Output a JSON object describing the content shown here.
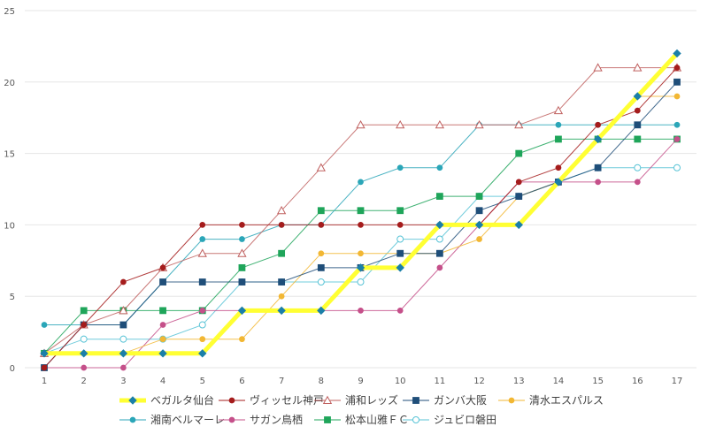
{
  "chart_data": {
    "type": "line",
    "x": [
      1,
      2,
      3,
      4,
      5,
      6,
      7,
      8,
      9,
      10,
      11,
      12,
      13,
      14,
      15,
      16,
      17
    ],
    "ylim": [
      0,
      25
    ],
    "yticks": [
      0,
      5,
      10,
      15,
      20,
      25
    ],
    "grid": true,
    "legend_position": "bottom",
    "series": [
      {
        "name": "ベガルタ仙台",
        "color": "#1b7fa8",
        "highlight": "#ffff33",
        "marker": "diamond",
        "values": [
          1,
          1,
          1,
          1,
          1,
          4,
          4,
          4,
          7,
          7,
          10,
          10,
          10,
          13,
          16,
          19,
          22
        ]
      },
      {
        "name": "ヴィッセル神戸",
        "color": "#a51c1c",
        "marker": "circle",
        "values": [
          0,
          3,
          6,
          7,
          10,
          10,
          10,
          10,
          10,
          10,
          10,
          10,
          13,
          14,
          17,
          18,
          21
        ]
      },
      {
        "name": "浦和レッズ",
        "color": "#c0605f",
        "marker": "triangle-open",
        "values": [
          1,
          3,
          4,
          7,
          8,
          8,
          11,
          14,
          17,
          17,
          17,
          17,
          17,
          18,
          21,
          21,
          21
        ]
      },
      {
        "name": "ガンバ大阪",
        "color": "#1f4e79",
        "marker": "square",
        "values": [
          0,
          3,
          3,
          6,
          6,
          6,
          6,
          7,
          7,
          8,
          8,
          11,
          12,
          13,
          14,
          17,
          20
        ]
      },
      {
        "name": "清水エスパルス",
        "color": "#f2b733",
        "marker": "circle",
        "values": [
          1,
          1,
          1,
          2,
          2,
          2,
          5,
          8,
          8,
          8,
          8,
          9,
          12,
          13,
          16,
          19,
          19
        ]
      },
      {
        "name": "湘南ベルマーレ",
        "color": "#2ba6b8",
        "marker": "circle",
        "values": [
          3,
          3,
          3,
          6,
          9,
          9,
          10,
          10,
          13,
          14,
          14,
          17,
          17,
          17,
          17,
          17,
          17
        ]
      },
      {
        "name": "サガン鳥栖",
        "color": "#c5508a",
        "marker": "circle",
        "values": [
          0,
          0,
          0,
          3,
          4,
          4,
          4,
          4,
          4,
          4,
          7,
          10,
          13,
          13,
          13,
          13,
          16
        ]
      },
      {
        "name": "松本山雅ＦＣ",
        "color": "#1fa55a",
        "marker": "square",
        "values": [
          1,
          4,
          4,
          4,
          4,
          7,
          8,
          11,
          11,
          11,
          12,
          12,
          15,
          16,
          16,
          16,
          16
        ]
      },
      {
        "name": "ジュビロ磐田",
        "color": "#58c3d6",
        "marker": "circle-open",
        "values": [
          1,
          2,
          2,
          2,
          3,
          6,
          6,
          6,
          6,
          9,
          9,
          12,
          12,
          13,
          14,
          14,
          14
        ]
      }
    ]
  }
}
